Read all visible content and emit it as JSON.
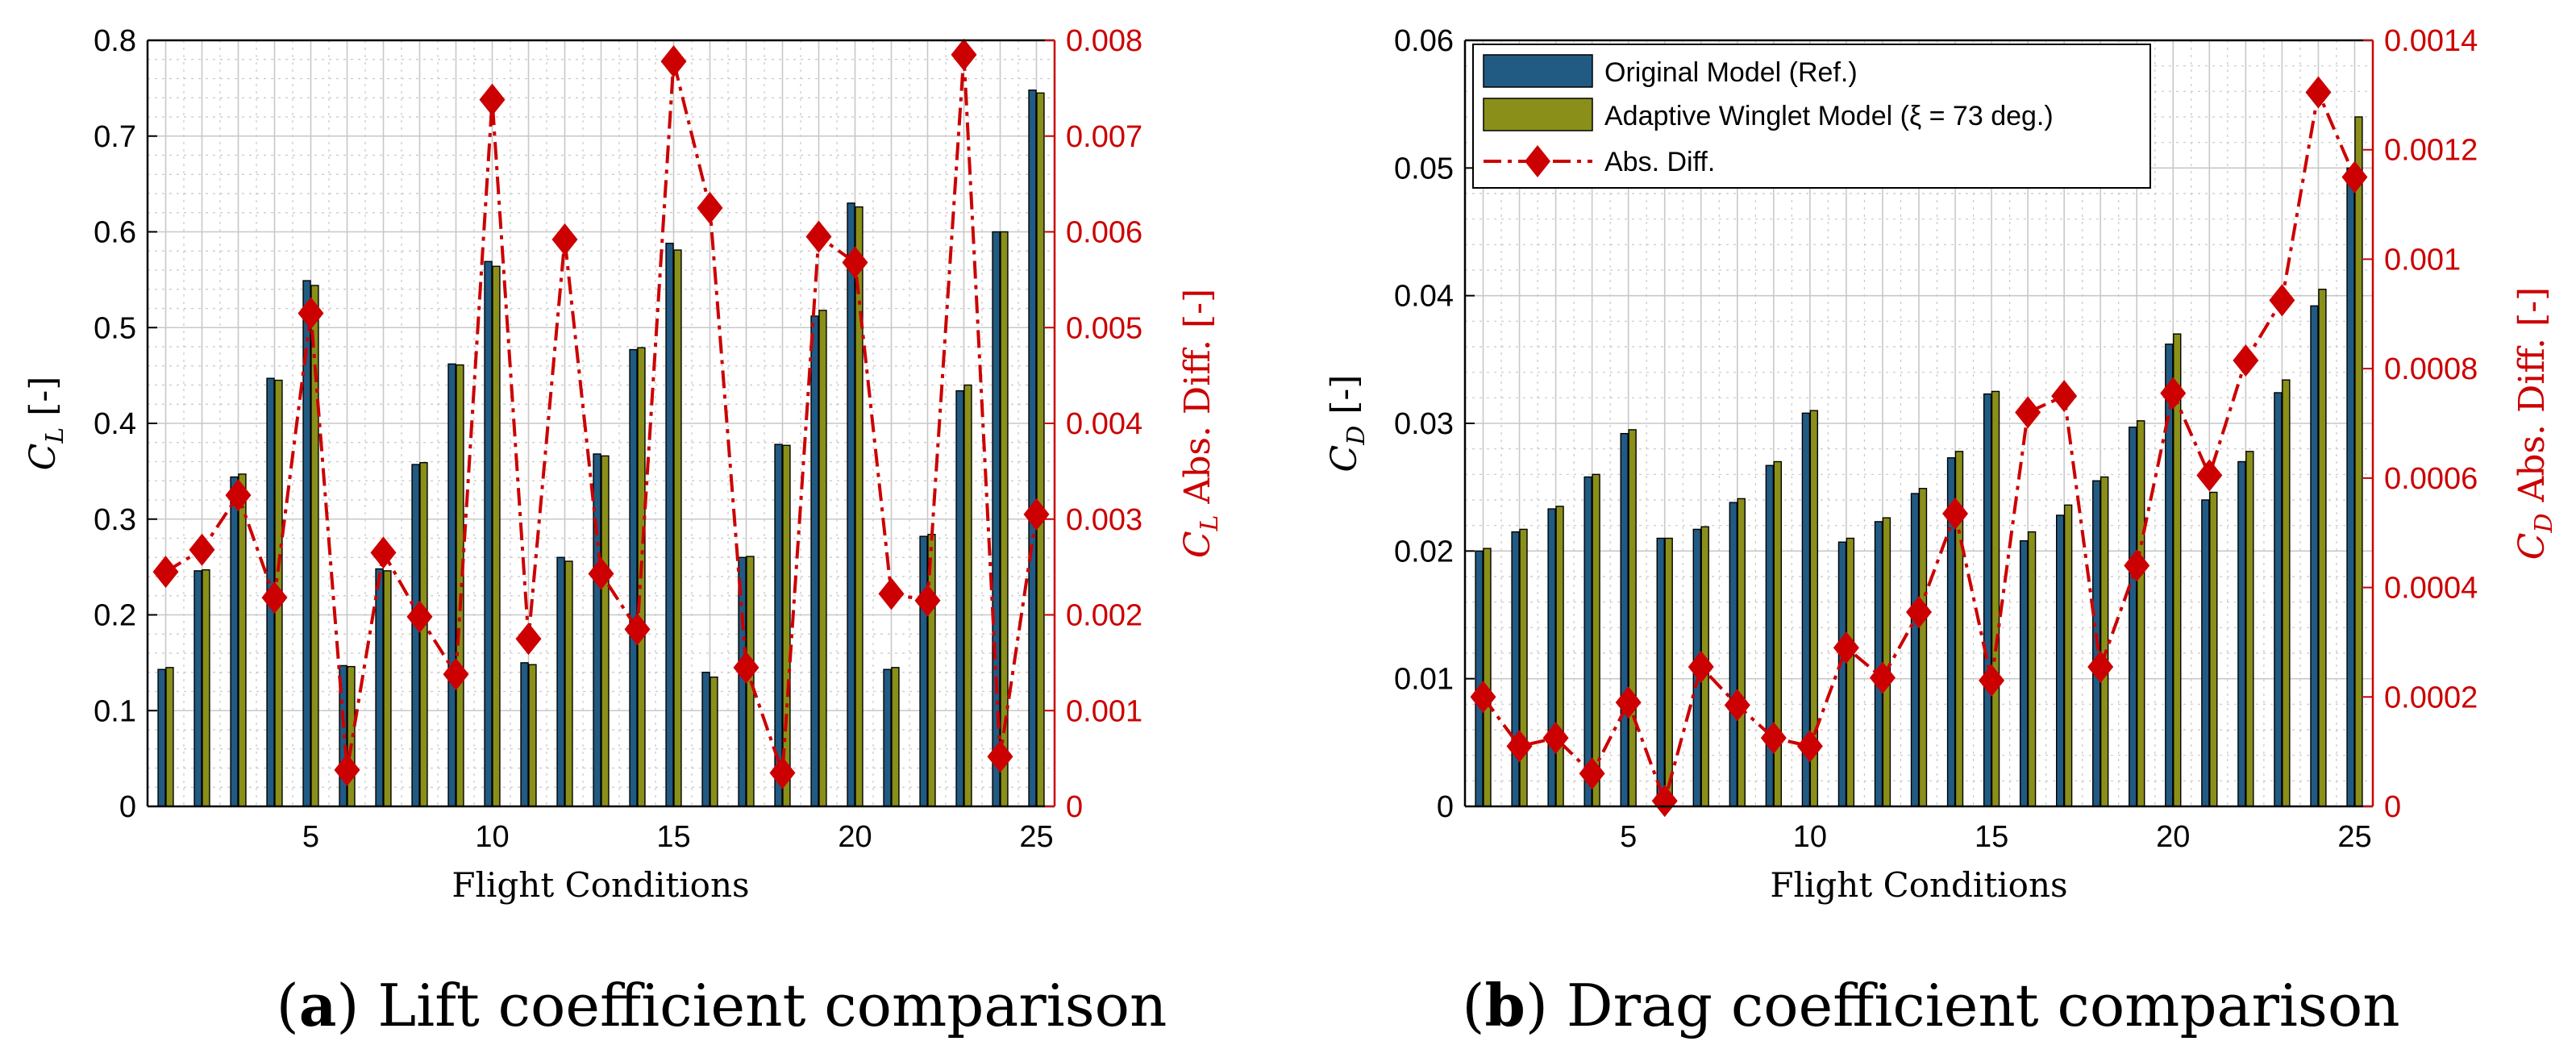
{
  "colors": {
    "series_ref": "#215a82",
    "series_winglet": "#8a8f1a",
    "diff": "#cc0000",
    "axis": "#000000",
    "grid": "#c8c8c8"
  },
  "legend": {
    "ref": "Original Model (Ref.)",
    "winglet": "Adaptive Winglet Model (ξ = 73 deg.)",
    "diff": "Abs. Diff."
  },
  "panels": {
    "a": {
      "caption_letter": "a",
      "caption_text": "Lift coefficient comparison",
      "ylabel_left_sym": "C",
      "ylabel_left_sub": "L",
      "ylabel_left_unit": "[-]",
      "ylabel_right_sym": "C",
      "ylabel_right_sub": "L",
      "ylabel_right_text": "Abs. Diff. [-]"
    },
    "b": {
      "caption_letter": "b",
      "caption_text": "Drag coefficient comparison",
      "ylabel_left_sym": "C",
      "ylabel_left_sub": "D",
      "ylabel_left_unit": "[-]",
      "ylabel_right_sym": "C",
      "ylabel_right_sub": "D",
      "ylabel_right_text": "Abs. Diff. [-]"
    }
  },
  "chart_data": [
    {
      "type": "bar",
      "title": "(a) Lift coefficient comparison",
      "xlabel": "Flight Conditions",
      "ylabel": "C_L [-]",
      "ylabel_right": "C_L Abs. Diff. [-]",
      "x": [
        1,
        2,
        3,
        4,
        5,
        6,
        7,
        8,
        9,
        10,
        11,
        12,
        13,
        14,
        15,
        16,
        17,
        18,
        19,
        20,
        21,
        22,
        23,
        24,
        25
      ],
      "xlim": [
        0.5,
        25.5
      ],
      "xticks": [
        5,
        10,
        15,
        20,
        25
      ],
      "xtick_labels": [
        "5",
        "10",
        "15",
        "20",
        "25"
      ],
      "ylim": [
        0,
        0.8
      ],
      "yticks": [
        0,
        0.1,
        0.2,
        0.3,
        0.4,
        0.5,
        0.6,
        0.7,
        0.8
      ],
      "ytick_labels": [
        "0",
        "0.1",
        "0.2",
        "0.3",
        "0.4",
        "0.5",
        "0.6",
        "0.7",
        "0.8"
      ],
      "ylim_right": [
        0,
        0.008
      ],
      "yticks_right": [
        0,
        0.001,
        0.002,
        0.003,
        0.004,
        0.005,
        0.006,
        0.007,
        0.008
      ],
      "ytick_labels_right": [
        "0",
        "0.001",
        "0.002",
        "0.003",
        "0.004",
        "0.005",
        "0.006",
        "0.007",
        "0.008"
      ],
      "grid": true,
      "legend_position": "none",
      "series": [
        {
          "name": "Original Model (Ref.)",
          "kind": "bar",
          "axis": "left",
          "values": [
            0.143,
            0.246,
            0.344,
            0.447,
            0.549,
            0.147,
            0.248,
            0.357,
            0.462,
            0.569,
            0.15,
            0.26,
            0.368,
            0.477,
            0.588,
            0.14,
            0.26,
            0.378,
            0.512,
            0.63,
            0.143,
            0.282,
            0.434,
            0.6,
            0.748
          ]
        },
        {
          "name": "Adaptive Winglet Model (ξ = 73 deg.)",
          "kind": "bar",
          "axis": "left",
          "values": [
            0.145,
            0.247,
            0.347,
            0.445,
            0.544,
            0.146,
            0.246,
            0.359,
            0.461,
            0.564,
            0.148,
            0.256,
            0.366,
            0.479,
            0.581,
            0.135,
            0.261,
            0.377,
            0.518,
            0.626,
            0.145,
            0.284,
            0.44,
            0.6,
            0.745
          ]
        },
        {
          "name": "Abs. Diff.",
          "kind": "line",
          "axis": "right",
          "values": [
            0.00245,
            0.00268,
            0.00325,
            0.00218,
            0.00515,
            0.00038,
            0.00265,
            0.00198,
            0.00138,
            0.00738,
            0.00175,
            0.00592,
            0.00243,
            0.00185,
            0.00778,
            0.00625,
            0.00145,
            0.00035,
            0.00595,
            0.00568,
            0.00222,
            0.00215,
            0.00785,
            0.00052,
            0.00305
          ]
        }
      ]
    },
    {
      "type": "bar",
      "title": "(b) Drag coefficient comparison",
      "xlabel": "Flight Conditions",
      "ylabel": "C_D [-]",
      "ylabel_right": "C_D Abs. Diff. [-]",
      "x": [
        1,
        2,
        3,
        4,
        5,
        6,
        7,
        8,
        9,
        10,
        11,
        12,
        13,
        14,
        15,
        16,
        17,
        18,
        19,
        20,
        21,
        22,
        23,
        24,
        25
      ],
      "xlim": [
        0.5,
        25.5
      ],
      "xticks": [
        5,
        10,
        15,
        20,
        25
      ],
      "xtick_labels": [
        "5",
        "10",
        "15",
        "20",
        "25"
      ],
      "ylim": [
        0,
        0.06
      ],
      "yticks": [
        0,
        0.01,
        0.02,
        0.03,
        0.04,
        0.05,
        0.06
      ],
      "ytick_labels": [
        "0",
        "0.01",
        "0.02",
        "0.03",
        "0.04",
        "0.05",
        "0.06"
      ],
      "ylim_right": [
        0,
        0.0014
      ],
      "yticks_right": [
        0,
        0.0002,
        0.0004,
        0.0006,
        0.0008,
        0.001,
        0.0012,
        0.0014
      ],
      "ytick_labels_right": [
        "0",
        "0.0002",
        "0.0004",
        "0.0006",
        "0.0008",
        "0.001",
        "0.0012",
        "0.0014"
      ],
      "grid": true,
      "legend_position": "top-left",
      "series": [
        {
          "name": "Original Model (Ref.)",
          "kind": "bar",
          "axis": "left",
          "values": [
            0.02,
            0.0215,
            0.0233,
            0.0258,
            0.0292,
            0.021,
            0.0217,
            0.0238,
            0.0267,
            0.0308,
            0.0207,
            0.0223,
            0.0245,
            0.0273,
            0.0323,
            0.0208,
            0.0228,
            0.0255,
            0.0297,
            0.0362,
            0.024,
            0.027,
            0.0324,
            0.0392,
            0.05
          ]
        },
        {
          "name": "Adaptive Winglet Model (ξ = 73 deg.)",
          "kind": "bar",
          "axis": "left",
          "values": [
            0.0202,
            0.0217,
            0.0235,
            0.026,
            0.0295,
            0.021,
            0.0219,
            0.0241,
            0.027,
            0.031,
            0.021,
            0.0226,
            0.0249,
            0.0278,
            0.0325,
            0.0215,
            0.0236,
            0.0258,
            0.0302,
            0.037,
            0.0246,
            0.0278,
            0.0334,
            0.0405,
            0.054
          ]
        },
        {
          "name": "Abs. Diff.",
          "kind": "line",
          "axis": "right",
          "values": [
            0.0002,
            0.00011,
            0.000125,
            6e-05,
            0.00019,
            1e-05,
            0.000255,
            0.000185,
            0.000125,
            0.00011,
            0.00029,
            0.000235,
            0.000355,
            0.000535,
            0.00023,
            0.00072,
            0.00075,
            0.000255,
            0.00044,
            0.000755,
            0.000605,
            0.000815,
            0.000925,
            0.001305,
            0.00115
          ]
        }
      ]
    }
  ]
}
